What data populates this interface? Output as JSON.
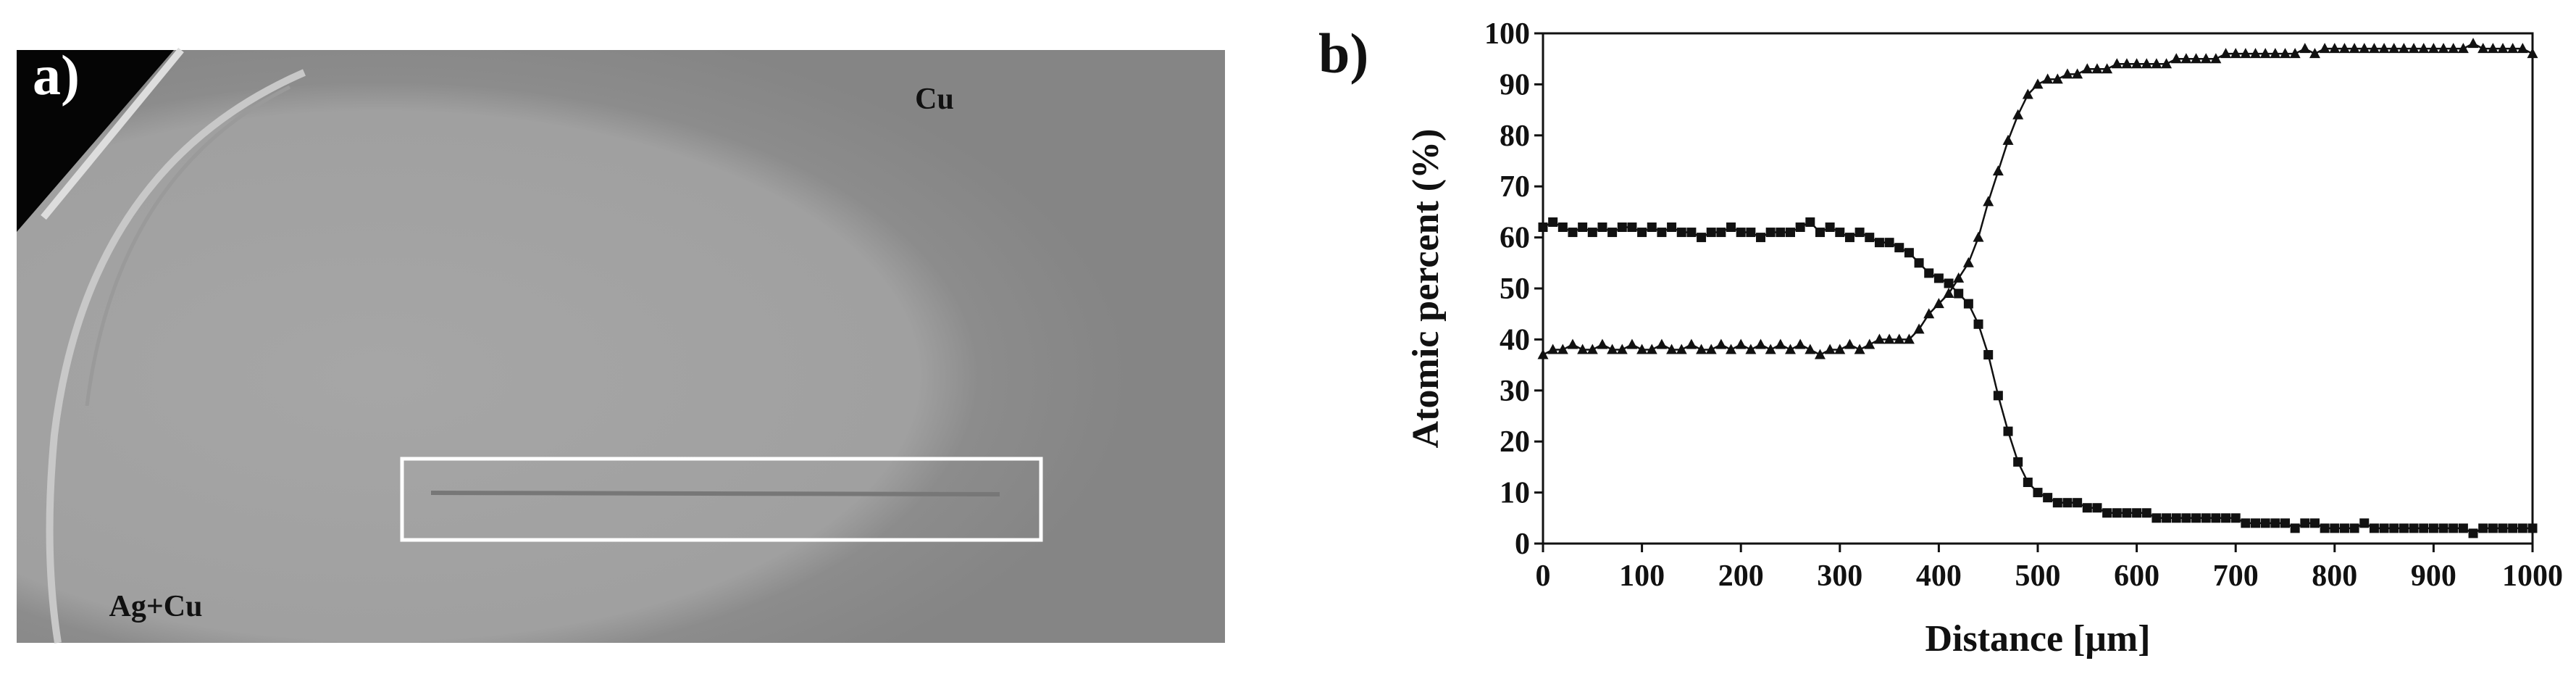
{
  "panel_a": {
    "label": "a)",
    "labels": [
      "Cu",
      "Ag+Cu"
    ]
  },
  "chart_data": {
    "type": "line",
    "panel_label": "b)",
    "x_label": "Distance [μm]",
    "y_label": "Atomic percent (%)",
    "x": [
      0,
      10,
      20,
      30,
      40,
      50,
      60,
      70,
      80,
      90,
      100,
      110,
      120,
      130,
      140,
      150,
      160,
      170,
      180,
      190,
      200,
      210,
      220,
      230,
      240,
      250,
      260,
      270,
      280,
      290,
      300,
      310,
      320,
      330,
      340,
      350,
      360,
      370,
      380,
      390,
      400,
      410,
      420,
      430,
      440,
      450,
      460,
      470,
      480,
      490,
      500,
      510,
      520,
      530,
      540,
      550,
      560,
      570,
      580,
      590,
      600,
      610,
      620,
      630,
      640,
      650,
      660,
      670,
      680,
      690,
      700,
      710,
      720,
      730,
      740,
      750,
      760,
      770,
      780,
      790,
      800,
      810,
      820,
      830,
      840,
      850,
      860,
      870,
      880,
      890,
      900,
      910,
      920,
      930,
      940,
      950,
      960,
      970,
      980,
      990,
      1000
    ],
    "series": [
      {
        "marker": "square",
        "color": "#111111",
        "values": [
          62,
          63,
          62,
          61,
          62,
          61,
          62,
          61,
          62,
          62,
          61,
          62,
          61,
          62,
          61,
          61,
          60,
          61,
          61,
          62,
          61,
          61,
          60,
          61,
          61,
          61,
          62,
          63,
          61,
          62,
          61,
          60,
          61,
          60,
          59,
          59,
          58,
          57,
          55,
          53,
          52,
          51,
          49,
          47,
          43,
          37,
          29,
          22,
          16,
          12,
          10,
          9,
          8,
          8,
          8,
          7,
          7,
          6,
          6,
          6,
          6,
          6,
          5,
          5,
          5,
          5,
          5,
          5,
          5,
          5,
          5,
          4,
          4,
          4,
          4,
          4,
          3,
          4,
          4,
          3,
          3,
          3,
          3,
          4,
          3,
          3,
          3,
          3,
          3,
          3,
          3,
          3,
          3,
          3,
          2,
          3,
          3,
          3,
          3,
          3,
          3
        ]
      },
      {
        "marker": "triangle",
        "color": "#111111",
        "values": [
          37,
          38,
          38,
          39,
          38,
          38,
          39,
          38,
          38,
          39,
          38,
          38,
          39,
          38,
          38,
          39,
          38,
          38,
          39,
          38,
          39,
          38,
          39,
          38,
          39,
          38,
          39,
          38,
          37,
          38,
          38,
          39,
          38,
          39,
          40,
          40,
          40,
          40,
          42,
          45,
          47,
          49,
          52,
          55,
          60,
          67,
          73,
          79,
          84,
          88,
          90,
          91,
          91,
          92,
          92,
          93,
          93,
          93,
          94,
          94,
          94,
          94,
          94,
          94,
          95,
          95,
          95,
          95,
          95,
          96,
          96,
          96,
          96,
          96,
          96,
          96,
          96,
          97,
          96,
          97,
          97,
          97,
          97,
          97,
          97,
          97,
          97,
          97,
          97,
          97,
          97,
          97,
          97,
          97,
          98,
          97,
          97,
          97,
          97,
          97,
          96
        ]
      }
    ],
    "xlim": [
      0,
      1000
    ],
    "xticks": [
      0,
      100,
      200,
      300,
      400,
      500,
      600,
      700,
      800,
      900,
      1000
    ],
    "ylim": [
      0,
      100
    ],
    "yticks": [
      0,
      10,
      20,
      30,
      40,
      50,
      60,
      70,
      80,
      90,
      100
    ]
  }
}
